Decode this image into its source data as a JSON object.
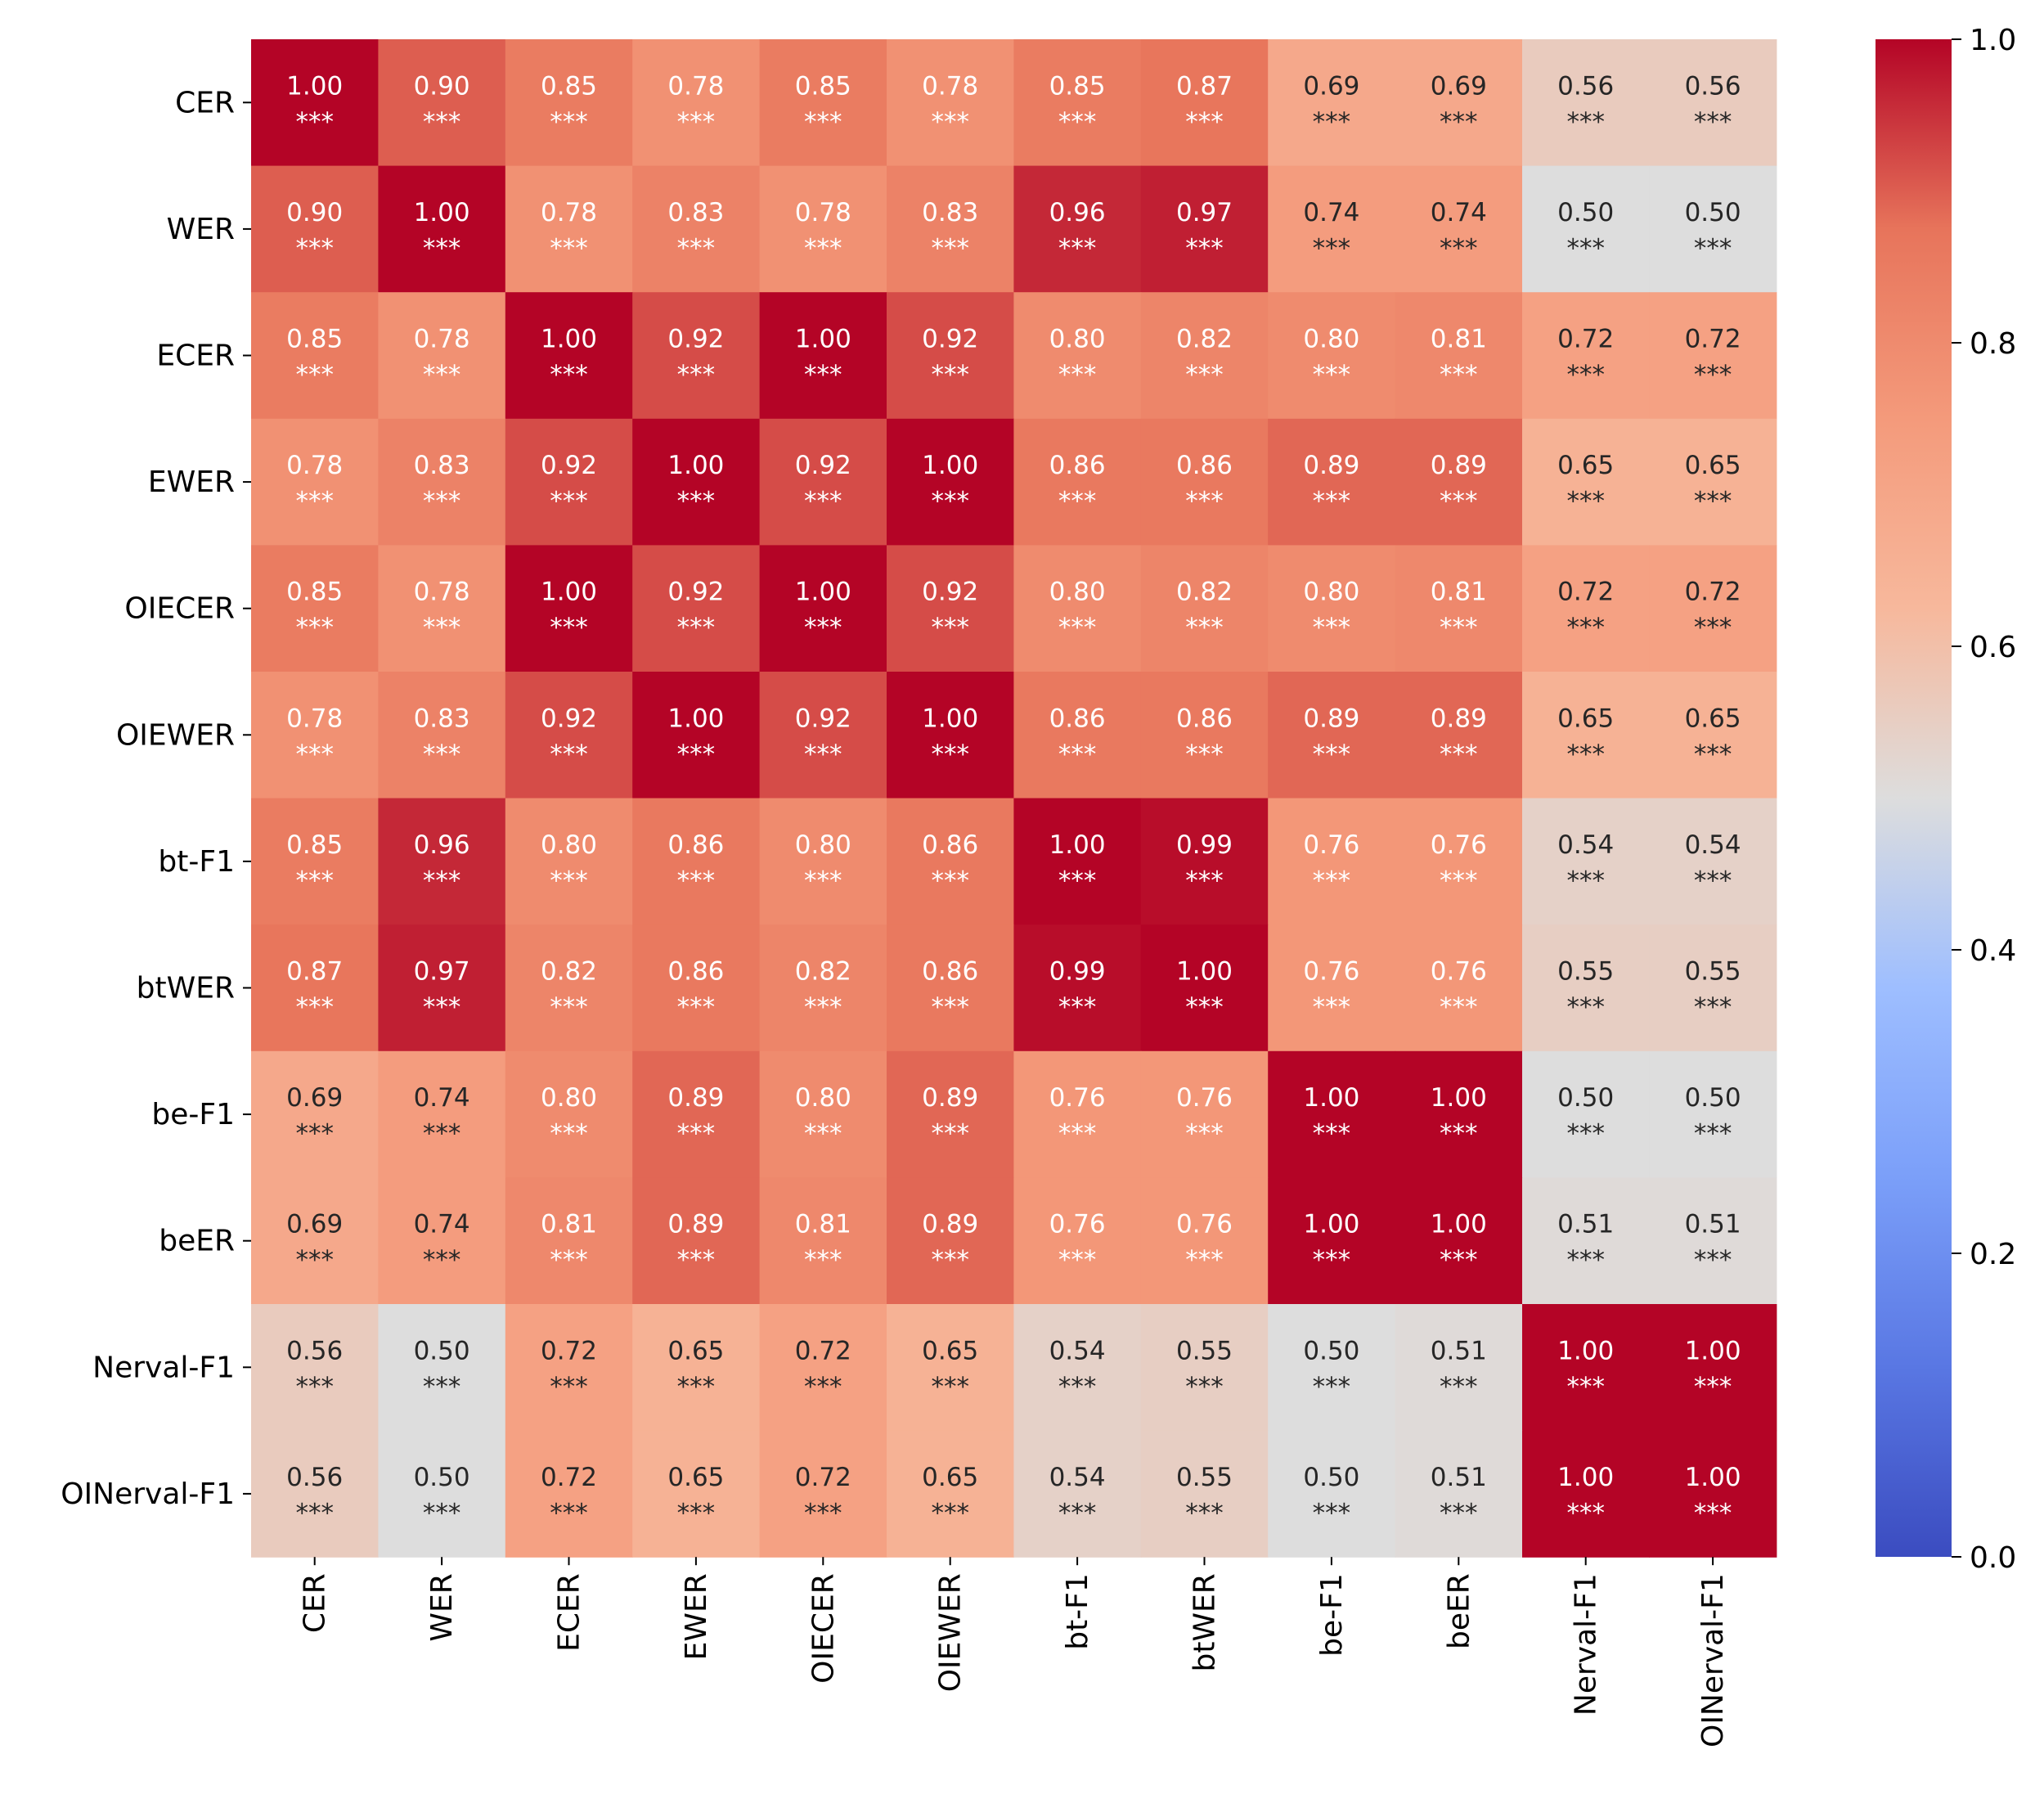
{
  "chart_data": {
    "type": "heatmap",
    "colormap": "coolwarm",
    "vmin": 0.0,
    "vmax": 1.0,
    "row_labels": [
      "CER",
      "WER",
      "ECER",
      "EWER",
      "OIECER",
      "OIEWER",
      "bt-F1",
      "btWER",
      "be-F1",
      "beER",
      "Nerval-F1",
      "OINerval-F1"
    ],
    "col_labels": [
      "CER",
      "WER",
      "ECER",
      "EWER",
      "OIECER",
      "OIEWER",
      "bt-F1",
      "btWER",
      "be-F1",
      "beER",
      "Nerval-F1",
      "OINerval-F1"
    ],
    "values": [
      [
        1.0,
        0.9,
        0.85,
        0.78,
        0.85,
        0.78,
        0.85,
        0.87,
        0.69,
        0.69,
        0.56,
        0.56
      ],
      [
        0.9,
        1.0,
        0.78,
        0.83,
        0.78,
        0.83,
        0.96,
        0.97,
        0.74,
        0.74,
        0.5,
        0.5
      ],
      [
        0.85,
        0.78,
        1.0,
        0.92,
        1.0,
        0.92,
        0.8,
        0.82,
        0.8,
        0.81,
        0.72,
        0.72
      ],
      [
        0.78,
        0.83,
        0.92,
        1.0,
        0.92,
        1.0,
        0.86,
        0.86,
        0.89,
        0.89,
        0.65,
        0.65
      ],
      [
        0.85,
        0.78,
        1.0,
        0.92,
        1.0,
        0.92,
        0.8,
        0.82,
        0.8,
        0.81,
        0.72,
        0.72
      ],
      [
        0.78,
        0.83,
        0.92,
        1.0,
        0.92,
        1.0,
        0.86,
        0.86,
        0.89,
        0.89,
        0.65,
        0.65
      ],
      [
        0.85,
        0.96,
        0.8,
        0.86,
        0.8,
        0.86,
        1.0,
        0.99,
        0.76,
        0.76,
        0.54,
        0.54
      ],
      [
        0.87,
        0.97,
        0.82,
        0.86,
        0.82,
        0.86,
        0.99,
        1.0,
        0.76,
        0.76,
        0.55,
        0.55
      ],
      [
        0.69,
        0.74,
        0.8,
        0.89,
        0.8,
        0.89,
        0.76,
        0.76,
        1.0,
        1.0,
        0.5,
        0.5
      ],
      [
        0.69,
        0.74,
        0.81,
        0.89,
        0.81,
        0.89,
        0.76,
        0.76,
        1.0,
        1.0,
        0.51,
        0.51
      ],
      [
        0.56,
        0.5,
        0.72,
        0.65,
        0.72,
        0.65,
        0.54,
        0.55,
        0.5,
        0.51,
        1.0,
        1.0
      ],
      [
        0.56,
        0.5,
        0.72,
        0.65,
        0.72,
        0.65,
        0.54,
        0.55,
        0.5,
        0.51,
        1.0,
        1.0
      ]
    ],
    "significance": "***",
    "colorbar_ticks": [
      "0.0",
      "0.2",
      "0.4",
      "0.6",
      "0.8",
      "1.0"
    ],
    "title": "",
    "xlabel": "",
    "ylabel": ""
  }
}
